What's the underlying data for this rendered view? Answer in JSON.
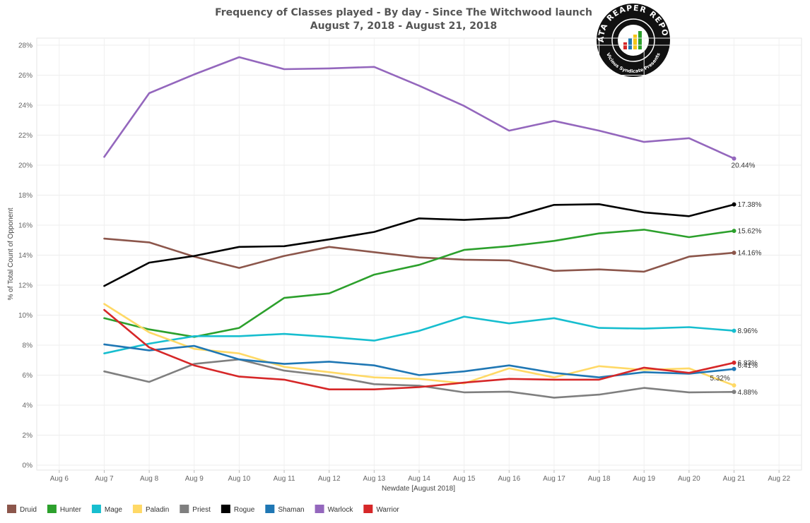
{
  "chart_data": {
    "type": "line",
    "title": "Frequency of Classes played - By day - Since The Witchwood launch",
    "subtitle": "August 7, 2018 - August 21, 2018",
    "xlabel": "Newdate [August 2018]",
    "ylabel": "% of Total Count of Opponent",
    "x_ticks": [
      "Aug 6",
      "Aug 7",
      "Aug 8",
      "Aug 9",
      "Aug 10",
      "Aug 11",
      "Aug 12",
      "Aug 13",
      "Aug 14",
      "Aug 15",
      "Aug 16",
      "Aug 17",
      "Aug 18",
      "Aug 19",
      "Aug 20",
      "Aug 21",
      "Aug 22"
    ],
    "x": [
      "Aug 7",
      "Aug 8",
      "Aug 9",
      "Aug 10",
      "Aug 11",
      "Aug 12",
      "Aug 13",
      "Aug 14",
      "Aug 15",
      "Aug 16",
      "Aug 17",
      "Aug 18",
      "Aug 19",
      "Aug 20",
      "Aug 21"
    ],
    "xlim": [
      "Aug 6",
      "Aug 22"
    ],
    "ylim": [
      0,
      28
    ],
    "y_ticks": [
      "0%",
      "2%",
      "4%",
      "6%",
      "8%",
      "10%",
      "12%",
      "14%",
      "16%",
      "18%",
      "20%",
      "22%",
      "24%",
      "26%",
      "28%"
    ],
    "grid": true,
    "legend_position": "bottom",
    "series": [
      {
        "name": "Druid",
        "color": "#8c564b",
        "values": [
          15.1,
          14.85,
          13.9,
          13.15,
          13.95,
          14.55,
          14.2,
          13.85,
          13.7,
          13.65,
          12.95,
          13.05,
          12.9,
          13.9,
          14.16
        ],
        "end_label": "14.16%"
      },
      {
        "name": "Hunter",
        "color": "#2ca02c",
        "values": [
          9.8,
          9.05,
          8.55,
          9.15,
          11.15,
          11.45,
          12.7,
          13.35,
          14.35,
          14.6,
          14.95,
          15.45,
          15.7,
          15.2,
          15.62
        ],
        "end_label": "15.62%"
      },
      {
        "name": "Mage",
        "color": "#17becf",
        "values": [
          7.45,
          8.1,
          8.6,
          8.6,
          8.75,
          8.55,
          8.3,
          8.95,
          9.9,
          9.45,
          9.8,
          9.15,
          9.1,
          9.2,
          8.96
        ],
        "end_label": "8.96%"
      },
      {
        "name": "Paladin",
        "color": "#ffd966",
        "values": [
          10.75,
          8.85,
          7.75,
          7.45,
          6.55,
          6.2,
          5.85,
          5.75,
          5.45,
          6.45,
          5.85,
          6.6,
          6.35,
          6.45,
          5.32
        ],
        "end_label": "5.32%"
      },
      {
        "name": "Priest",
        "color": "#7f7f7f",
        "values": [
          6.25,
          5.55,
          6.75,
          7.05,
          6.3,
          5.95,
          5.4,
          5.3,
          4.85,
          4.9,
          4.5,
          4.7,
          5.15,
          4.85,
          4.88
        ],
        "end_label": "4.88%"
      },
      {
        "name": "Rogue",
        "color": "#000000",
        "values": [
          11.95,
          13.5,
          13.95,
          14.55,
          14.6,
          15.05,
          15.55,
          16.45,
          16.35,
          16.5,
          17.35,
          17.4,
          16.85,
          16.6,
          17.38
        ],
        "end_label": "17.38%"
      },
      {
        "name": "Shaman",
        "color": "#1f77b4",
        "values": [
          8.05,
          7.65,
          7.95,
          7.05,
          6.75,
          6.9,
          6.65,
          6.0,
          6.25,
          6.65,
          6.15,
          5.85,
          6.2,
          6.1,
          6.41
        ],
        "end_label": "6.41%"
      },
      {
        "name": "Warlock",
        "color": "#9467bd",
        "values": [
          20.55,
          24.8,
          26.05,
          27.2,
          26.4,
          26.45,
          26.55,
          25.3,
          23.95,
          22.3,
          22.95,
          22.3,
          21.55,
          21.8,
          20.44
        ],
        "end_label": "20.44%"
      },
      {
        "name": "Warrior",
        "color": "#d62728",
        "values": [
          10.35,
          7.85,
          6.65,
          5.9,
          5.7,
          5.05,
          5.05,
          5.2,
          5.5,
          5.75,
          5.7,
          5.7,
          6.5,
          6.15,
          6.83
        ],
        "end_label": "6.83%"
      }
    ]
  },
  "logo": {
    "top_text": "DATA REAPER REPORT",
    "bottom_text": "Vicious Syndicate Presents"
  }
}
